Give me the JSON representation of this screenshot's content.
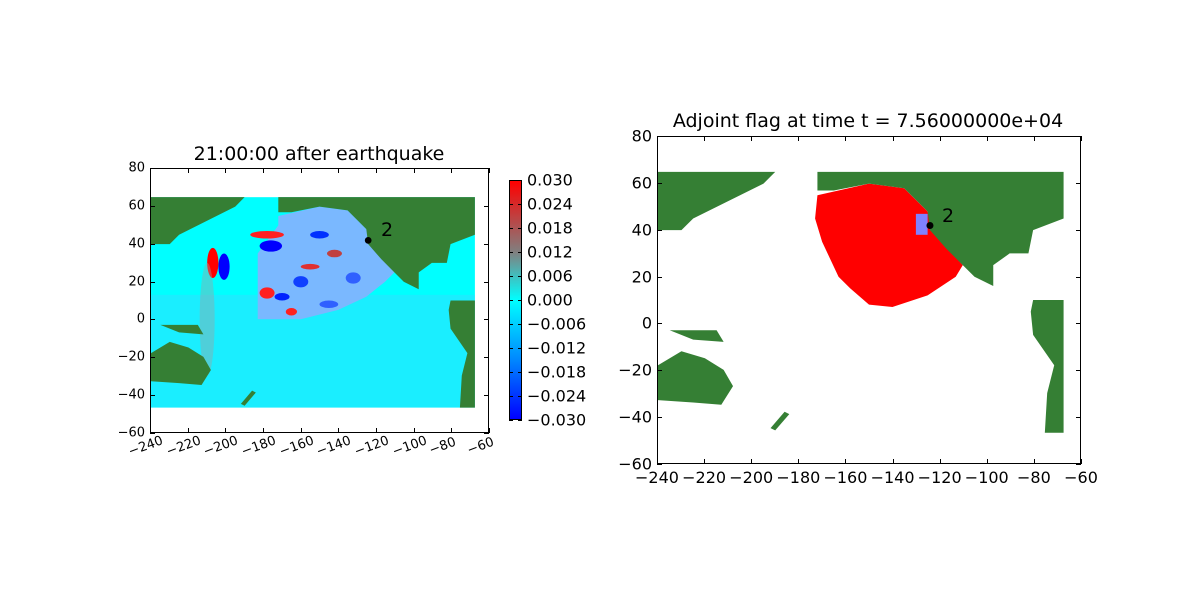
{
  "chart_data": [
    {
      "type": "heatmap",
      "title": "21:00:00 after earthquake",
      "xlim": [
        -240,
        -60
      ],
      "ylim": [
        -60,
        80
      ],
      "xticks": [
        -240,
        -220,
        -200,
        -180,
        -160,
        -140,
        -120,
        -100,
        -80,
        -60
      ],
      "yticks": [
        -60,
        -40,
        -20,
        0,
        20,
        40,
        60,
        80
      ],
      "xtick_labels": [
        "−240",
        "−220",
        "−200",
        "−180",
        "−160",
        "−140",
        "−120",
        "−100",
        "−80",
        "−60"
      ],
      "ytick_labels": [
        "−60",
        "−40",
        "−20",
        "0",
        "20",
        "40",
        "60",
        "80"
      ],
      "colorbar": {
        "vmin": -0.03,
        "vmax": 0.03,
        "ticks": [
          0.03,
          0.024,
          0.018,
          0.012,
          0.006,
          0.0,
          -0.006,
          -0.012,
          -0.018,
          -0.024,
          -0.03
        ],
        "tick_labels": [
          "0.030",
          "0.024",
          "0.018",
          "0.012",
          "0.006",
          "0.000",
          "−0.006",
          "−0.012",
          "−0.018",
          "−0.024",
          "−0.030"
        ],
        "colors": [
          "#0000ff",
          "#00ffff",
          "#ff0000"
        ]
      },
      "station": {
        "lon": -124,
        "lat": 42,
        "label": "2"
      },
      "data_extent": {
        "lon": [
          -240,
          -67
        ],
        "lat": [
          -47,
          65
        ]
      }
    },
    {
      "type": "heatmap",
      "title": "Adjoint flag at time t = 7.56000000e+04",
      "xlim": [
        -240,
        -60
      ],
      "ylim": [
        -60,
        80
      ],
      "xticks": [
        -240,
        -220,
        -200,
        -180,
        -160,
        -140,
        -120,
        -100,
        -80,
        -60
      ],
      "yticks": [
        -60,
        -40,
        -20,
        0,
        20,
        40,
        60,
        80
      ],
      "xtick_labels": [
        "−240",
        "−220",
        "−200",
        "−180",
        "−160",
        "−140",
        "−120",
        "−100",
        "−80",
        "−60"
      ],
      "ytick_labels": [
        "−60",
        "−40",
        "−20",
        "0",
        "20",
        "40",
        "60",
        "80"
      ],
      "station": {
        "lon": -124,
        "lat": 42,
        "label": "2"
      },
      "flag_box": {
        "lon": [
          -130,
          -125
        ],
        "lat": [
          38,
          47
        ]
      },
      "data_extent": {
        "lon": [
          -240,
          -67
        ],
        "lat": [
          -47,
          65
        ]
      }
    }
  ],
  "colors": {
    "land": "#357f34",
    "land_edge": "#6aa800",
    "ocean_left": "#00ffff",
    "flag": "#ff0000",
    "box": "#8080ff"
  }
}
